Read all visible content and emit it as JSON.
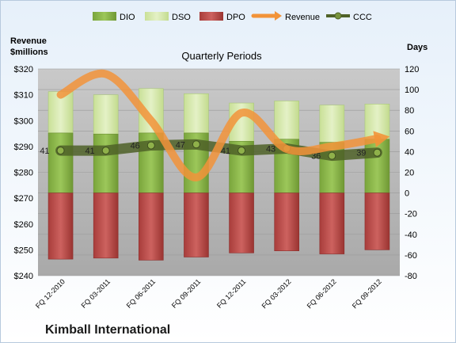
{
  "company": "Kimball International",
  "legend_items": [
    "DIO",
    "DSO",
    "DPO",
    "Revenue",
    "CCC"
  ],
  "colors": {
    "dio": "#8fbc4a",
    "dso": "#d6e9ad",
    "dpo": "#c0504d",
    "revenue": "#f29339",
    "ccc": "#4f6228",
    "plot_bg": "#b7b7b7"
  },
  "chart_data": {
    "type": "bar",
    "title": "Quarterly Periods",
    "left_axis": {
      "label_line1": "Revenue",
      "label_line2": "$millions",
      "range": [
        240,
        320
      ],
      "ticks": [
        "$240",
        "$250",
        "$260",
        "$270",
        "$280",
        "$290",
        "$300",
        "$310",
        "$320"
      ]
    },
    "right_axis": {
      "label": "Days",
      "range": [
        -80,
        120
      ],
      "ticks": [
        "-80",
        "-60",
        "-40",
        "-20",
        "0",
        "20",
        "40",
        "60",
        "80",
        "100",
        "120"
      ]
    },
    "categories": [
      "FQ 12-2010",
      "FQ 03-2011",
      "FQ 06-2011",
      "FQ 09-2011",
      "FQ 12-2011",
      "FQ 03-2012",
      "FQ 06-2012",
      "FQ 09-2012"
    ],
    "series": [
      {
        "name": "DIO",
        "axis": "right",
        "values": [
          58,
          57,
          58,
          58,
          50,
          52,
          49,
          52
        ]
      },
      {
        "name": "DSO",
        "axis": "right",
        "values": [
          40,
          38,
          43,
          38,
          37,
          37,
          36,
          34
        ]
      },
      {
        "name": "DPO",
        "axis": "right",
        "values": [
          -64,
          -63,
          -65,
          -62,
          -58,
          -56,
          -59,
          -55
        ]
      },
      {
        "name": "Revenue",
        "axis": "left",
        "values": [
          310,
          318,
          300,
          278,
          303,
          289,
          290,
          293
        ]
      },
      {
        "name": "CCC",
        "axis": "right",
        "values": [
          41,
          41,
          46,
          47,
          41,
          43,
          36,
          39
        ]
      }
    ],
    "ccc_labels": [
      "41",
      "41",
      "46",
      "47",
      "41",
      "43",
      "36",
      "39"
    ]
  }
}
